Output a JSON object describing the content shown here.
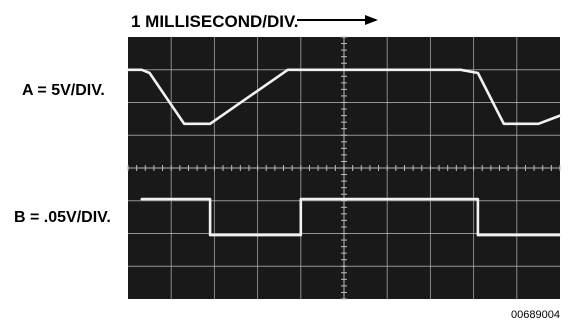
{
  "header": {
    "timebase_label": "1 MILLISECOND/DIV."
  },
  "channels": {
    "a_label": "A = 5V/DIV.",
    "b_label": "B = .05V/DIV."
  },
  "footer": {
    "figure_code": "00689004"
  },
  "colors": {
    "screen": "#191919",
    "graticule": "#bdbdbd",
    "trace": "#f2f2f2"
  },
  "chart_data": {
    "type": "line",
    "xlabel": "1 MILLISECOND/DIV.",
    "x_unit": "ms",
    "xlim": [
      0,
      10
    ],
    "divisions_x": 10,
    "divisions_y": 8,
    "grid": true,
    "series": [
      {
        "name": "A = 5V/DIV.",
        "x": [
          0,
          0.32,
          0.5,
          1.3,
          1.9,
          3.7,
          7.7,
          8.1,
          8.7,
          9.5,
          10
        ],
        "y": [
          3.0,
          3.0,
          2.9,
          1.35,
          1.35,
          3.0,
          3.0,
          2.9,
          1.35,
          1.35,
          1.6
        ]
      },
      {
        "name": "B = .05V/DIV.",
        "x": [
          0.32,
          1.9,
          1.9,
          4.0,
          4.0,
          8.1,
          8.1,
          10
        ],
        "y": [
          -0.95,
          -0.95,
          -2.05,
          -2.05,
          -0.95,
          -0.95,
          -2.05,
          -2.05
        ]
      }
    ]
  }
}
